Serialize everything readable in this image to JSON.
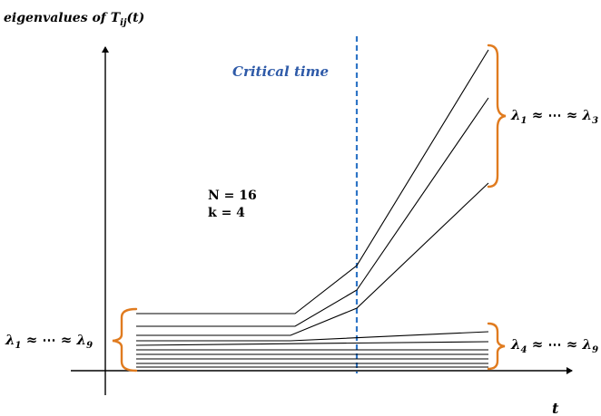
{
  "y_axis_label": "eigenvalues of T_ij(t)",
  "x_axis_label": "t",
  "critical_label": "Critical time",
  "params": {
    "n": "N = 16",
    "k": "k = 4"
  },
  "brackets": {
    "left": "λ1 ≈ ⋯ ≈ λ9",
    "right_top": "λ1 ≈ ⋯ ≈ λ3",
    "right_bottom": "λ4 ≈ ⋯ ≈ λ9"
  },
  "colors": {
    "axis": "#000000",
    "lines": "#000000",
    "critical": "#2e75c6",
    "critical_text": "#2e5aa8",
    "bracket": "#e07b1f"
  }
}
